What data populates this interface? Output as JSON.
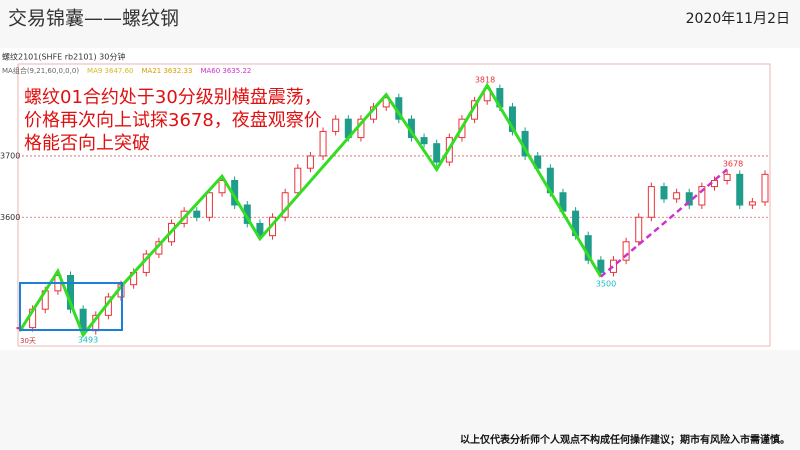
{
  "header": {
    "title": "交易锦囊——螺纹钢",
    "date": "2020年11月2日"
  },
  "chart_data": {
    "type": "candlestick",
    "title": "螺纹2101(SHFE rb2101) 30分钟",
    "indicators": [
      "MA组合(9,21,60,0,0,0)",
      "MA9 3647.60",
      "MA21 3632.33",
      "MA60 3635.22"
    ],
    "values": [
      3420,
      3450,
      3480,
      3505,
      3450,
      3415,
      3440,
      3470,
      3490,
      3510,
      3540,
      3560,
      3590,
      3610,
      3600,
      3640,
      3660,
      3620,
      3590,
      3570,
      3600,
      3640,
      3680,
      3700,
      3740,
      3760,
      3730,
      3760,
      3780,
      3795,
      3760,
      3730,
      3720,
      3690,
      3730,
      3760,
      3790,
      3810,
      3780,
      3740,
      3700,
      3680,
      3640,
      3610,
      3570,
      3530,
      3510,
      3530,
      3560,
      3600,
      3650,
      3630,
      3640,
      3620,
      3650,
      3660,
      3670,
      3620,
      3625,
      3670
    ],
    "up_color": "#e8333a",
    "down_color": "#1f9c8a",
    "zigzag": {
      "color": "#33dd22",
      "x": [
        0,
        3,
        5,
        8,
        16,
        19,
        29,
        33,
        37,
        46
      ],
      "values": [
        3415,
        3512,
        3408,
        3487,
        3667,
        3565,
        3800,
        3678,
        3815,
        3503
      ]
    },
    "trend": {
      "color": "#cc33cc",
      "x": [
        46,
        56
      ],
      "values": [
        3503,
        3678
      ]
    },
    "annotations": [
      "3818",
      "3500",
      "3678",
      "3493"
    ],
    "x_label": "30天",
    "ylim": [
      3390,
      3850
    ],
    "yticks": [
      3600,
      3700
    ],
    "grid": true
  },
  "commentary": [
    "螺纹01合约处于30分级别横盘震荡，",
    "价格再次向上试探3678，夜盘观察价",
    "格能否向上突破"
  ],
  "footer": "以上仅代表分析师个人观点不构成任何操作建议；期市有风险入市需谨慎。"
}
